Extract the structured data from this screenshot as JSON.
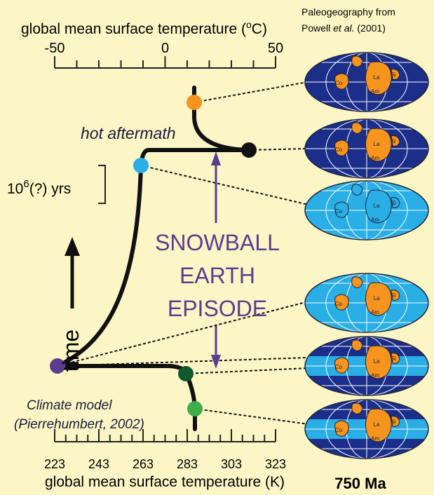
{
  "top_axis": {
    "title": "global mean surface temperature (",
    "title_sup": "o",
    "title_end": "C)",
    "ticks": [
      "-50",
      "0",
      "50"
    ]
  },
  "bottom_axis": {
    "title": "global mean surface temperature (K)",
    "ticks": [
      "223",
      "243",
      "263",
      "283",
      "303",
      "323"
    ]
  },
  "source": {
    "line1": "Paleogeography from",
    "line2_a": "Powell ",
    "line2_b": "et al.",
    "line2_c": " (2001)"
  },
  "annotations": {
    "hot_aftermath": "hot aftermath",
    "duration_a": "10",
    "duration_sup": "6",
    "duration_b": "(?) yrs",
    "time": "time",
    "episode": [
      "SNOWBALL",
      "EARTH",
      "EPISODE"
    ],
    "model_1": "Climate model",
    "model_2": "(Pierrehumbert, 2002)"
  },
  "globe_labels": [
    "Co",
    "La",
    "Am",
    "Si"
  ],
  "age": "750 Ma"
}
